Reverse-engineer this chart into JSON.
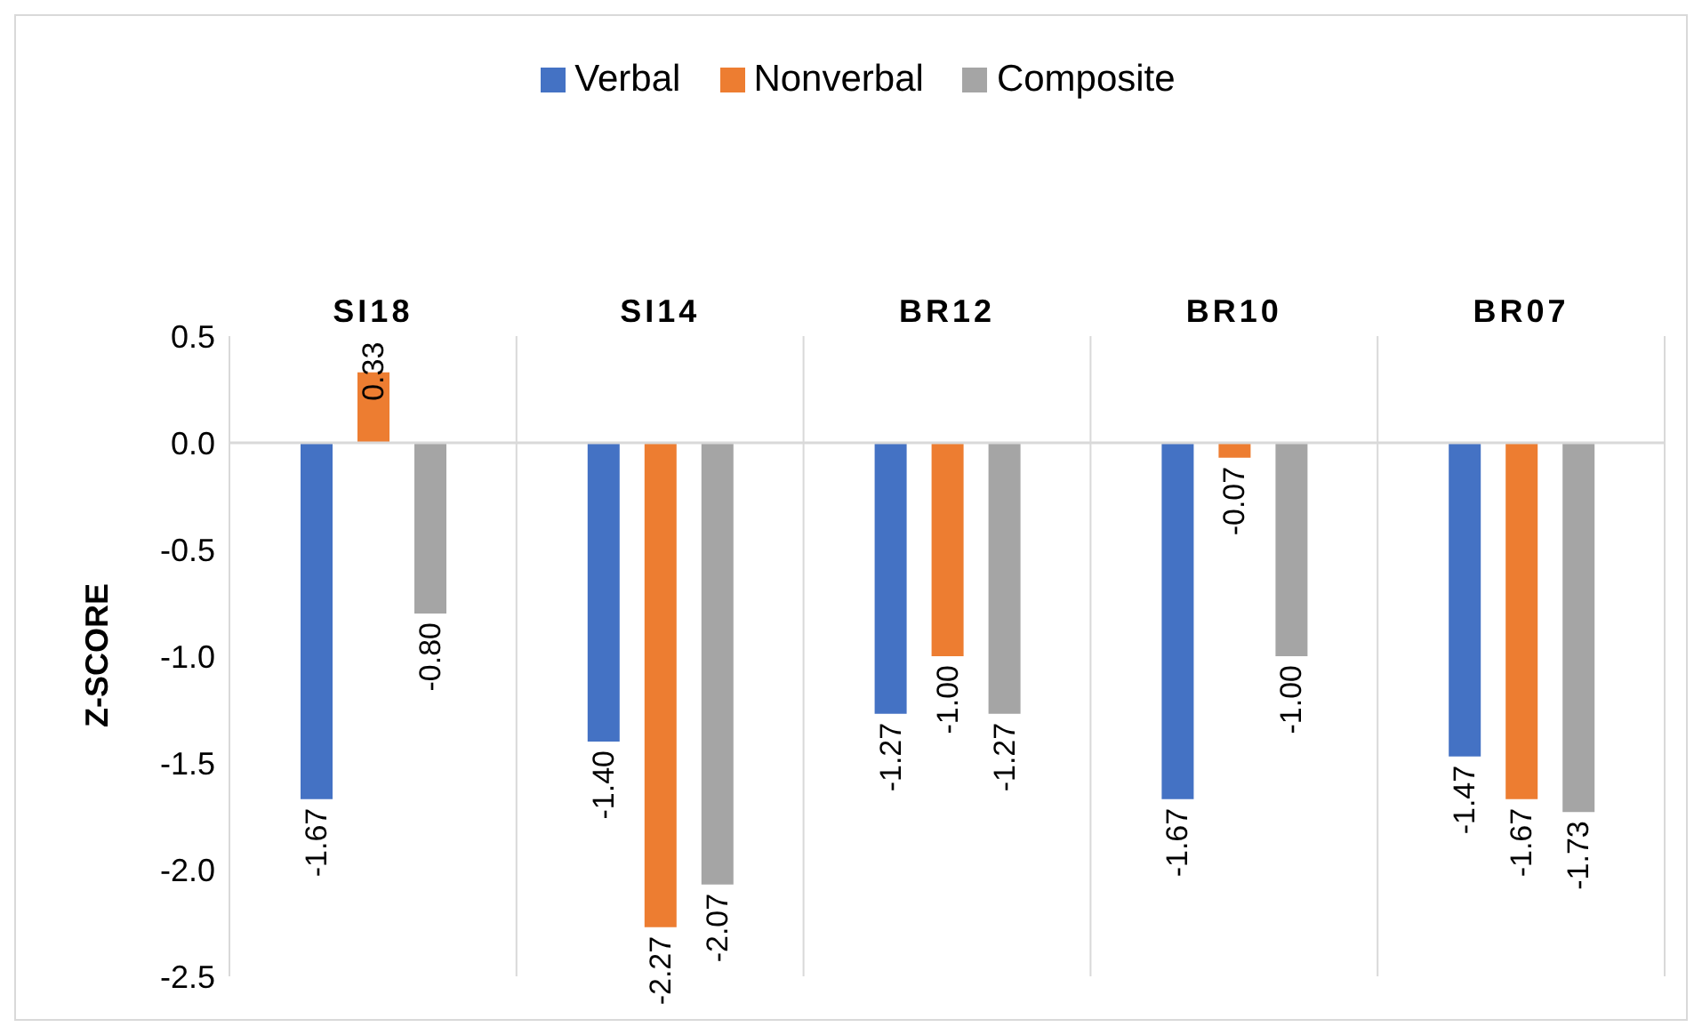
{
  "chart_data": {
    "type": "bar",
    "ylabel": "Z-SCORE",
    "categories": [
      "SI18",
      "SI14",
      "BR12",
      "BR10",
      "BR07"
    ],
    "series": [
      {
        "name": "Verbal",
        "color": "#4472c4",
        "values": [
          -1.67,
          -1.4,
          -1.27,
          -1.67,
          -1.47
        ],
        "value_labels": [
          "-1.67",
          "-1.40",
          "-1.27",
          "-1.67",
          "-1.47"
        ]
      },
      {
        "name": "Nonverbal",
        "color": "#ed7d31",
        "values": [
          0.33,
          -2.27,
          -1.0,
          -0.07,
          -1.67
        ],
        "value_labels": [
          "0.33",
          "-2.27",
          "-1.00",
          "-0.07",
          "-1.67"
        ]
      },
      {
        "name": "Composite",
        "color": "#a5a5a5",
        "values": [
          -0.8,
          -2.07,
          -1.27,
          -1.0,
          -1.73
        ],
        "value_labels": [
          "-0.80",
          "-2.07",
          "-1.27",
          "-1.00",
          "-1.73"
        ]
      }
    ],
    "ylim": [
      -2.5,
      0.5
    ],
    "yticks": [
      {
        "value": 0.5,
        "label": "0.5"
      },
      {
        "value": 0.0,
        "label": "0.0"
      },
      {
        "value": -0.5,
        "label": "-0.5"
      },
      {
        "value": -1.0,
        "label": "-1.0"
      },
      {
        "value": -1.5,
        "label": "-1.5"
      },
      {
        "value": -2.0,
        "label": "-2.0"
      },
      {
        "value": -2.5,
        "label": "-2.5"
      }
    ],
    "grid": "x",
    "legend": "top"
  }
}
